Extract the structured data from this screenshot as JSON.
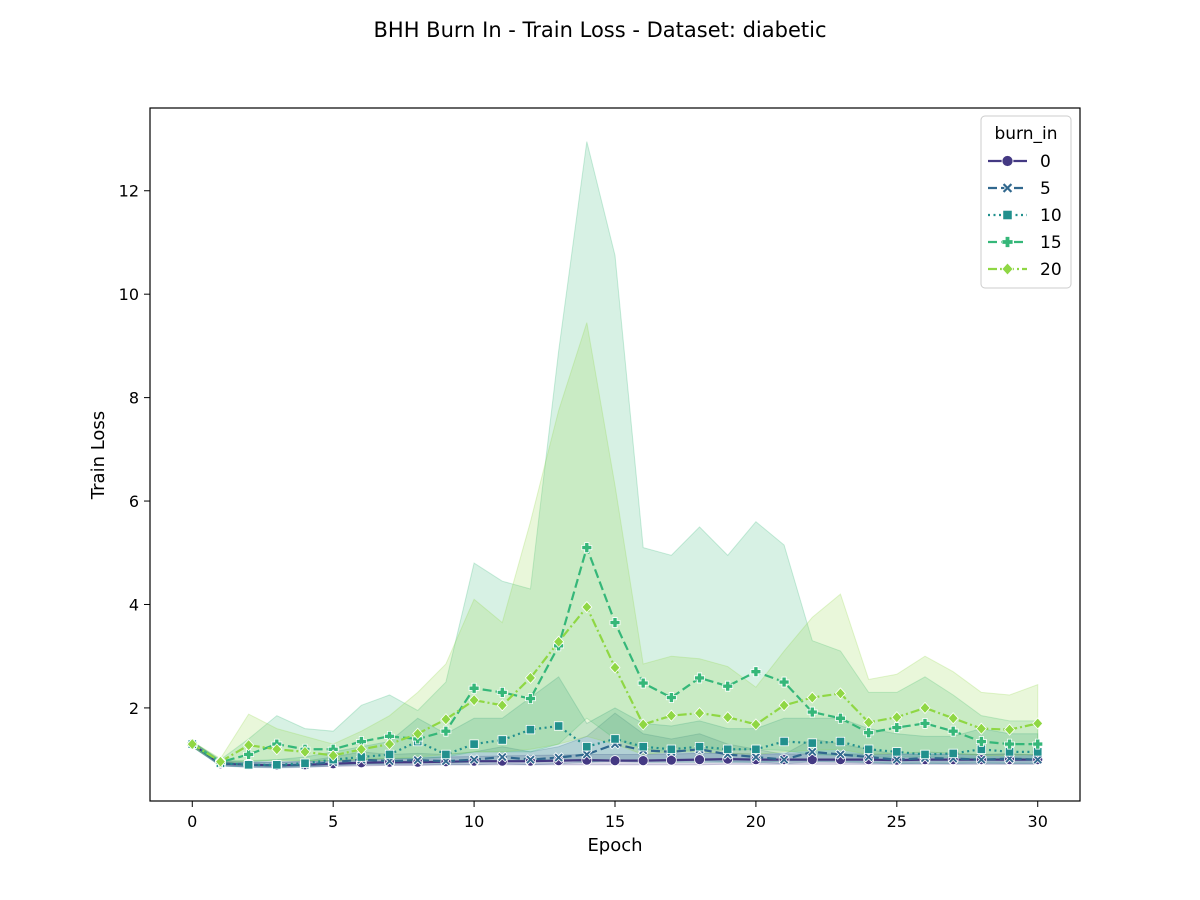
{
  "chart_data": {
    "type": "line",
    "title": "BHH Burn In - Train Loss - Dataset: diabetic",
    "xlabel": "Epoch",
    "ylabel": "Train Loss",
    "xlim": [
      -1.5,
      31.5
    ],
    "ylim": [
      0.2,
      13.6
    ],
    "xticks": [
      0,
      5,
      10,
      15,
      20,
      25,
      30
    ],
    "yticks": [
      2,
      4,
      6,
      8,
      10,
      12
    ],
    "grid": false,
    "legend": {
      "title": "burn_in",
      "placement": "top-right"
    },
    "x": [
      0,
      1,
      2,
      3,
      4,
      5,
      6,
      7,
      8,
      9,
      10,
      11,
      12,
      13,
      14,
      15,
      16,
      17,
      18,
      19,
      20,
      21,
      22,
      23,
      24,
      25,
      26,
      27,
      28,
      29,
      30
    ],
    "series": [
      {
        "name": "0",
        "color": "#443983",
        "marker": "circle",
        "dash": "solid",
        "values": [
          1.3,
          0.92,
          0.9,
          0.89,
          0.9,
          0.92,
          0.94,
          0.95,
          0.95,
          0.96,
          0.97,
          0.97,
          0.97,
          0.98,
          0.99,
          0.98,
          0.98,
          0.99,
          1.0,
          1.01,
          1.0,
          1.0,
          1.0,
          1.0,
          1.0,
          0.99,
          1.0,
          1.0,
          1.0,
          1.0,
          1.0
        ],
        "lower": [
          1.25,
          0.88,
          0.86,
          0.85,
          0.86,
          0.87,
          0.88,
          0.89,
          0.89,
          0.9,
          0.9,
          0.9,
          0.9,
          0.9,
          0.9,
          0.9,
          0.9,
          0.9,
          0.9,
          0.91,
          0.91,
          0.91,
          0.91,
          0.91,
          0.91,
          0.91,
          0.91,
          0.91,
          0.91,
          0.91,
          0.91
        ],
        "upper": [
          1.35,
          0.96,
          0.95,
          0.95,
          0.96,
          0.98,
          1.0,
          1.02,
          1.03,
          1.05,
          1.06,
          1.07,
          1.08,
          1.09,
          1.1,
          1.1,
          1.1,
          1.11,
          1.12,
          1.12,
          1.11,
          1.11,
          1.11,
          1.11,
          1.11,
          1.1,
          1.1,
          1.1,
          1.1,
          1.1,
          1.1
        ]
      },
      {
        "name": "5",
        "color": "#31688e",
        "marker": "x",
        "dash": "dash",
        "values": [
          1.3,
          0.93,
          0.9,
          0.89,
          0.9,
          0.95,
          1.0,
          0.97,
          0.99,
          0.97,
          1.0,
          1.05,
          1.0,
          1.04,
          1.1,
          1.3,
          1.18,
          1.15,
          1.2,
          1.1,
          1.05,
          1.0,
          1.15,
          1.1,
          1.05,
          1.0,
          1.03,
          1.02,
          1.0,
          1.02,
          1.0
        ],
        "lower": [
          1.25,
          0.88,
          0.85,
          0.84,
          0.85,
          0.88,
          0.9,
          0.9,
          0.9,
          0.9,
          0.9,
          0.92,
          0.9,
          0.92,
          0.95,
          1.0,
          0.98,
          0.97,
          0.98,
          0.96,
          0.95,
          0.92,
          0.96,
          0.95,
          0.93,
          0.92,
          0.93,
          0.92,
          0.92,
          0.92,
          0.92
        ],
        "upper": [
          1.35,
          0.98,
          0.95,
          0.95,
          0.97,
          1.05,
          1.15,
          1.1,
          1.12,
          1.1,
          1.15,
          1.25,
          1.15,
          1.25,
          1.45,
          1.9,
          1.5,
          1.4,
          1.5,
          1.3,
          1.2,
          1.1,
          1.4,
          1.3,
          1.2,
          1.1,
          1.15,
          1.12,
          1.1,
          1.12,
          1.08
        ]
      },
      {
        "name": "10",
        "color": "#21908d",
        "marker": "square",
        "dash": "dot",
        "values": [
          1.3,
          0.93,
          0.9,
          0.9,
          0.93,
          1.0,
          1.05,
          1.1,
          1.35,
          1.1,
          1.3,
          1.38,
          1.58,
          1.65,
          1.25,
          1.4,
          1.25,
          1.2,
          1.25,
          1.2,
          1.2,
          1.35,
          1.32,
          1.35,
          1.2,
          1.15,
          1.1,
          1.12,
          1.2,
          1.15,
          1.15
        ],
        "lower": [
          1.25,
          0.88,
          0.86,
          0.86,
          0.87,
          0.9,
          0.92,
          0.92,
          0.95,
          0.93,
          0.95,
          0.96,
          1.0,
          1.0,
          0.95,
          0.97,
          0.95,
          0.95,
          0.95,
          0.95,
          0.95,
          0.97,
          0.97,
          0.97,
          0.95,
          0.93,
          0.93,
          0.93,
          0.94,
          0.93,
          0.93
        ],
        "upper": [
          1.35,
          0.98,
          0.98,
          1.0,
          1.05,
          1.15,
          1.25,
          1.35,
          1.8,
          1.5,
          1.8,
          1.8,
          2.2,
          2.6,
          1.7,
          2.0,
          1.7,
          1.65,
          1.75,
          1.6,
          1.6,
          1.8,
          1.8,
          1.8,
          1.6,
          1.5,
          1.45,
          1.45,
          1.6,
          1.5,
          1.5
        ]
      },
      {
        "name": "15",
        "color": "#35b779",
        "marker": "plus",
        "dash": "dash",
        "values": [
          1.3,
          0.95,
          1.1,
          1.3,
          1.2,
          1.2,
          1.35,
          1.45,
          1.4,
          1.55,
          2.38,
          2.3,
          2.18,
          3.2,
          5.1,
          3.65,
          2.48,
          2.2,
          2.58,
          2.42,
          2.7,
          2.5,
          1.92,
          1.8,
          1.52,
          1.62,
          1.7,
          1.55,
          1.35,
          1.3,
          1.3
        ],
        "lower": [
          1.25,
          0.9,
          0.95,
          1.0,
          0.98,
          0.98,
          1.0,
          1.02,
          1.02,
          1.05,
          1.15,
          1.15,
          1.15,
          1.3,
          1.8,
          1.4,
          1.2,
          1.15,
          1.2,
          1.18,
          1.2,
          1.18,
          1.1,
          1.08,
          1.05,
          1.05,
          1.05,
          1.04,
          1.02,
          1.02,
          1.02
        ],
        "upper": [
          1.35,
          1.0,
          1.4,
          1.85,
          1.6,
          1.55,
          2.05,
          2.25,
          1.95,
          2.5,
          4.8,
          4.45,
          4.3,
          8.9,
          12.95,
          10.75,
          5.1,
          4.95,
          5.5,
          4.95,
          5.6,
          5.15,
          3.3,
          3.1,
          2.3,
          2.3,
          2.6,
          2.25,
          1.85,
          1.75,
          1.75
        ]
      },
      {
        "name": "20",
        "color": "#8fd744",
        "marker": "diamond",
        "dash": "dashdot",
        "values": [
          1.3,
          0.96,
          1.28,
          1.2,
          1.15,
          1.08,
          1.2,
          1.3,
          1.5,
          1.78,
          2.15,
          2.05,
          2.58,
          3.28,
          3.95,
          2.78,
          1.68,
          1.85,
          1.9,
          1.82,
          1.68,
          2.05,
          2.2,
          2.28,
          1.72,
          1.82,
          2.0,
          1.8,
          1.6,
          1.58,
          1.7
        ],
        "lower": [
          1.25,
          0.92,
          0.98,
          0.98,
          0.98,
          0.98,
          1.0,
          1.02,
          1.05,
          1.1,
          1.15,
          1.15,
          1.2,
          1.3,
          1.45,
          1.3,
          1.1,
          1.15,
          1.15,
          1.12,
          1.1,
          1.15,
          1.18,
          1.2,
          1.1,
          1.12,
          1.15,
          1.12,
          1.08,
          1.08,
          1.1
        ],
        "upper": [
          1.35,
          1.02,
          1.88,
          1.6,
          1.45,
          1.3,
          1.55,
          1.85,
          2.3,
          2.85,
          4.1,
          3.65,
          5.6,
          7.75,
          9.45,
          6.3,
          2.85,
          3.0,
          2.95,
          2.8,
          2.4,
          3.1,
          3.75,
          4.2,
          2.55,
          2.65,
          3.0,
          2.7,
          2.3,
          2.25,
          2.45
        ]
      }
    ]
  }
}
